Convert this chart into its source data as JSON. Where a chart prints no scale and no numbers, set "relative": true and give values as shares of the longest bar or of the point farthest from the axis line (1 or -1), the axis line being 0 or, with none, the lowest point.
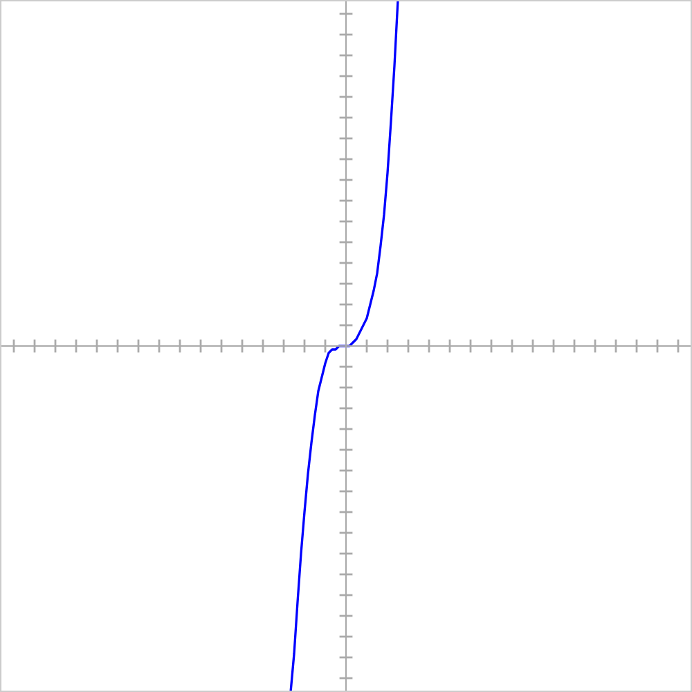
{
  "chart_data": {
    "type": "line",
    "relative": true,
    "legend": false,
    "marker": "none",
    "line_style": "solid",
    "categories": [
      null,
      null,
      null,
      null,
      null,
      null,
      null,
      null,
      null,
      null,
      null,
      null,
      null,
      null,
      null,
      null,
      null,
      null,
      null,
      null,
      null,
      null,
      null,
      null,
      null,
      null,
      null,
      null,
      null,
      null,
      null,
      null,
      null,
      null,
      null,
      null,
      null,
      null,
      null,
      null,
      null,
      null,
      null,
      null,
      null,
      null,
      null,
      null,
      null,
      null,
      null,
      null,
      null,
      null,
      null,
      null,
      null,
      null,
      null,
      null,
      null,
      null,
      null,
      null,
      null,
      null,
      null,
      null,
      null,
      null,
      null,
      null,
      null,
      null,
      null,
      null,
      null,
      null,
      null,
      null,
      null,
      null,
      null,
      null,
      null,
      null,
      null,
      null,
      null,
      null,
      null,
      null,
      null,
      null,
      null,
      null,
      null,
      null,
      null,
      null,
      null,
      null,
      null,
      null,
      null,
      null,
      null,
      null,
      null,
      null,
      null,
      null,
      null,
      null,
      null,
      null,
      null,
      null,
      null,
      null,
      null,
      null,
      null,
      null,
      null,
      null,
      null,
      null,
      null,
      null,
      null,
      null,
      null,
      null,
      null,
      null,
      null,
      null,
      null,
      null,
      null,
      null,
      null,
      null,
      null,
      null,
      null,
      null,
      null,
      null,
      null,
      null,
      null,
      null,
      null,
      null,
      null,
      null,
      null,
      null,
      null,
      null,
      null,
      null,
      null,
      null,
      null,
      null,
      null,
      null,
      null,
      null,
      null,
      null,
      null,
      null,
      null,
      null,
      null,
      null,
      null,
      null,
      null,
      null,
      null,
      null,
      null,
      null,
      null,
      null,
      null,
      null,
      null,
      null,
      null,
      null,
      null,
      null,
      null,
      null,
      null
    ],
    "series": [
      {
        "color": "#0000ff",
        "values": [
          null,
          null,
          null,
          null,
          null,
          null,
          null,
          null,
          null,
          null,
          null,
          null,
          null,
          null,
          null,
          null,
          null,
          null,
          null,
          null,
          null,
          null,
          null,
          null,
          null,
          null,
          null,
          null,
          null,
          null,
          null,
          null,
          null,
          null,
          null,
          null,
          null,
          null,
          null,
          null,
          null,
          null,
          null,
          null,
          null,
          null,
          null,
          null,
          null,
          null,
          null,
          null,
          null,
          null,
          null,
          null,
          null,
          null,
          null,
          null,
          null,
          null,
          null,
          null,
          null,
          null,
          null,
          null,
          null,
          null,
          null,
          null,
          null,
          null,
          null,
          null,
          null,
          null,
          null,
          null,
          null,
          null,
          null,
          null,
          -1.0,
          -0.89,
          -0.74,
          -0.6,
          -0.48,
          -0.37,
          -0.28,
          -0.2,
          -0.13,
          -0.09,
          -0.05,
          -0.02,
          -0.01,
          -0.01,
          0,
          0,
          0,
          0,
          0.01,
          0.02,
          0.04,
          0.06,
          0.08,
          0.12,
          0.16,
          0.21,
          0.29,
          0.38,
          0.5,
          0.65,
          0.81,
          1.0,
          null,
          null,
          null,
          null,
          null,
          null,
          null,
          null,
          null,
          null,
          null,
          null,
          null,
          null,
          null,
          null,
          null,
          null,
          null,
          null,
          null,
          null,
          null,
          null,
          null,
          null,
          null,
          null,
          null,
          null,
          null,
          null,
          null,
          null,
          null,
          null,
          null,
          null,
          null,
          null,
          null,
          null,
          null,
          null,
          null,
          null,
          null,
          null,
          null,
          null,
          null,
          null,
          null,
          null,
          null,
          null,
          null,
          null,
          null,
          null,
          null,
          null,
          null,
          null,
          null,
          null,
          null,
          null,
          null,
          null,
          null,
          null,
          null,
          null,
          null,
          null,
          null,
          null,
          null,
          null,
          null,
          null,
          null,
          null,
          null
        ]
      }
    ]
  }
}
